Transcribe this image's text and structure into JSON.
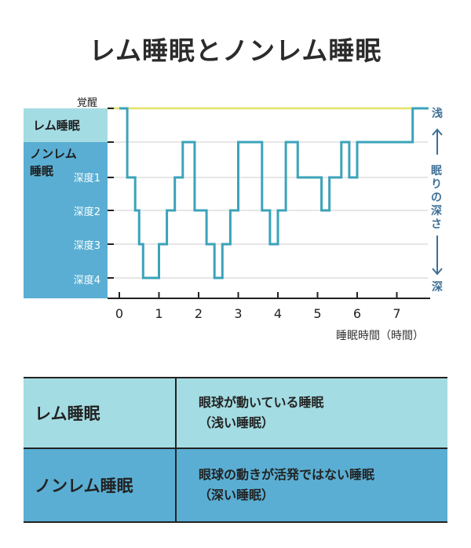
{
  "title": "レム睡眠とノンレム睡眠",
  "colors": {
    "rem_band": "#a4dce3",
    "nrem_band": "#5aaed3",
    "line": "#3ba3b9",
    "awake_line": "#e3e26a",
    "side_text": "#3d6f96"
  },
  "labels": {
    "awake": "覚醒",
    "rem_band": "レム睡眠",
    "nrem_band_line1": "ノンレム",
    "nrem_band_line2": "睡眠",
    "depths": [
      "深度1",
      "深度2",
      "深度3",
      "深度4"
    ],
    "side_shallow": "浅",
    "side_middle": "眠りの深さ",
    "side_deep": "深",
    "xaxis": "睡眠時間（時間）"
  },
  "chart_data": {
    "type": "line",
    "step": true,
    "xlabel": "睡眠時間（時間）",
    "xlim": [
      0,
      7.8
    ],
    "xticks": [
      "0",
      "1",
      "2",
      "3",
      "4",
      "5",
      "6",
      "7"
    ],
    "levels": [
      "覚醒",
      "レム睡眠",
      "深度1",
      "深度2",
      "深度3",
      "深度4"
    ],
    "series": [
      {
        "x": [
          0,
          0.2,
          0.4,
          0.5,
          0.6,
          0.8,
          1.0,
          1.2,
          1.4,
          1.6,
          1.9,
          2.2,
          2.4,
          2.6,
          2.8,
          3.0,
          3.6,
          3.8,
          4.0,
          4.2,
          4.4,
          4.5,
          5.1,
          5.3,
          5.6,
          5.8,
          6.0,
          6.7,
          7.4,
          7.7,
          7.8
        ],
        "y": [
          "覚醒",
          "深度1",
          "深度2",
          "深度3",
          "深度4",
          "深度4",
          "深度3",
          "深度2",
          "深度1",
          "レム睡眠",
          "深度2",
          "深度3",
          "深度4",
          "深度3",
          "深度2",
          "レム睡眠",
          "深度2",
          "深度3",
          "深度2",
          "レム睡眠",
          "レム睡眠",
          "深度1",
          "深度2",
          "深度1",
          "レム睡眠",
          "深度1",
          "レム睡眠",
          "レム睡眠",
          "覚醒",
          "覚醒",
          "覚醒"
        ]
      }
    ]
  },
  "legend": {
    "rem": {
      "name": "レム睡眠",
      "desc1": "眼球が動いている睡眠",
      "desc2": "（浅い睡眠）"
    },
    "nrem": {
      "name": "ノンレム睡眠",
      "desc1": "眼球の動きが活発ではない睡眠",
      "desc2": "（深い睡眠）"
    }
  }
}
